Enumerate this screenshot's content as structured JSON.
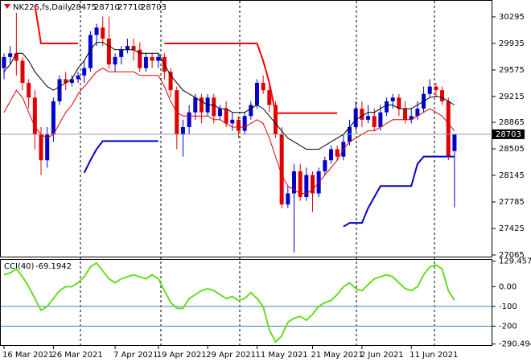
{
  "chart_data": [
    {
      "type": "candlestick",
      "title": "NK225,fs,Daily",
      "ylim": [
        27043,
        30513
      ],
      "yticks": [
        30295,
        29935,
        29575,
        29215,
        28865,
        28505,
        28145,
        27785,
        27425,
        27065
      ],
      "xticks": [
        {
          "value": 0,
          "label": "16 Mar 2021"
        },
        {
          "value": 8,
          "label": "26 Mar 2021"
        },
        {
          "value": 18,
          "label": "7 Apr 2021"
        },
        {
          "value": 25,
          "label": "19 Apr 2021"
        },
        {
          "value": 33,
          "label": "29 Apr 2021"
        },
        {
          "value": 41,
          "label": "11 May 2021"
        },
        {
          "value": 50,
          "label": "21 May 2021"
        },
        {
          "value": 58,
          "label": "2 Jun 2021"
        },
        {
          "value": 66,
          "label": "11 Jun 2021"
        }
      ],
      "up_color": "#0000cd",
      "down_color": "#e00000",
      "open": [
        29600,
        29750,
        29800,
        29700,
        29400,
        29200,
        28700,
        28350,
        28700,
        29150,
        29450,
        29400,
        29450,
        29500,
        29600,
        30050,
        30150,
        30000,
        29650,
        29750,
        29850,
        29900,
        29850,
        29600,
        29750,
        29700,
        29750,
        29550,
        29300,
        28700,
        28800,
        29000,
        29200,
        29000,
        29200,
        28950,
        29050,
        28850,
        28900,
        28750,
        28950,
        29100,
        29400,
        29300,
        29100,
        28700,
        27750,
        27900,
        28200,
        27850,
        28150,
        27900,
        28200,
        28350,
        28500,
        28400,
        28600,
        28800,
        29050,
        28900,
        28950,
        28800,
        29000,
        29150,
        29200,
        29050,
        28900,
        28950,
        29050,
        29250,
        29350,
        29300,
        29150,
        28475
      ],
      "high": [
        29800,
        29900,
        30350,
        29750,
        29450,
        29300,
        28800,
        28800,
        29200,
        29500,
        29550,
        29500,
        29550,
        29700,
        30100,
        30200,
        30300,
        30300,
        29800,
        29900,
        30000,
        30000,
        29950,
        29800,
        29800,
        29800,
        29800,
        29600,
        29350,
        28900,
        29100,
        29250,
        29250,
        29250,
        29250,
        29100,
        29150,
        29000,
        28950,
        29000,
        29150,
        29450,
        29500,
        29350,
        29150,
        28800,
        28000,
        28300,
        28300,
        28250,
        28200,
        28250,
        28400,
        28550,
        28550,
        28700,
        28900,
        29150,
        29150,
        29100,
        29050,
        29100,
        29200,
        29250,
        29250,
        29150,
        29050,
        29150,
        29350,
        29450,
        29400,
        29350,
        29200,
        28710
      ],
      "low": [
        29450,
        29650,
        29500,
        29300,
        29050,
        28500,
        28150,
        28250,
        28600,
        29100,
        29300,
        29350,
        29400,
        29400,
        29550,
        29900,
        29900,
        29600,
        29550,
        29650,
        29800,
        29700,
        29550,
        29550,
        29600,
        29600,
        29450,
        29200,
        28500,
        28400,
        28700,
        28900,
        28850,
        28950,
        28850,
        28900,
        28800,
        28750,
        28650,
        28700,
        28900,
        29050,
        29250,
        29000,
        28650,
        27700,
        27700,
        27100,
        27800,
        27800,
        27650,
        27850,
        28150,
        28300,
        28350,
        28350,
        28550,
        28750,
        28800,
        28850,
        28750,
        28750,
        28950,
        29050,
        28950,
        28850,
        28850,
        28900,
        29000,
        29200,
        29200,
        29100,
        28350,
        27710
      ],
      "close": [
        29750,
        29800,
        29700,
        29400,
        29200,
        28700,
        28350,
        28700,
        29150,
        29450,
        29400,
        29450,
        29500,
        29600,
        30050,
        30150,
        30000,
        29650,
        29750,
        29850,
        29900,
        29850,
        29600,
        29750,
        29700,
        29750,
        29550,
        29300,
        28700,
        28800,
        29000,
        29200,
        29000,
        29200,
        28950,
        29050,
        28850,
        28900,
        28750,
        28950,
        29100,
        29400,
        29300,
        29100,
        28700,
        27750,
        27900,
        28200,
        27850,
        28150,
        27900,
        28200,
        28350,
        28500,
        28400,
        28600,
        28800,
        29050,
        28900,
        28950,
        28800,
        29000,
        29150,
        29200,
        29050,
        28900,
        28950,
        29050,
        29250,
        29350,
        29300,
        29150,
        28400,
        28703
      ],
      "lines": [
        {
          "color": "#000000",
          "width": 1,
          "values": [
            29550,
            29650,
            29800,
            29800,
            29700,
            29550,
            29450,
            29350,
            29300,
            29350,
            29400,
            29450,
            29600,
            29700,
            29850,
            29950,
            29950,
            29900,
            29850,
            29850,
            29850,
            29850,
            29800,
            29800,
            29800,
            29800,
            29650,
            29500,
            29400,
            29300,
            29250,
            29200,
            29150,
            29100,
            29100,
            29050,
            29050,
            29000,
            29000,
            29000,
            29050,
            29100,
            29050,
            28950,
            28850,
            28750,
            28650,
            28600,
            28550,
            28500,
            28500,
            28500,
            28550,
            28600,
            28650,
            28700,
            28800,
            28900,
            28950,
            29000,
            29000,
            29050,
            29100,
            29100,
            29050,
            29050,
            29050,
            29100,
            29150,
            29200,
            29220,
            29200,
            29150,
            29100
          ]
        },
        {
          "color": "#e00000",
          "width": 1,
          "values": [
            29000,
            29150,
            29300,
            29200,
            29000,
            28800,
            28700,
            28650,
            28700,
            28850,
            29000,
            29100,
            29250,
            29350,
            29450,
            29550,
            29600,
            29550,
            29550,
            29550,
            29550,
            29550,
            29500,
            29500,
            29500,
            29500,
            29350,
            29150,
            29000,
            28950,
            28950,
            28950,
            28950,
            28950,
            28900,
            28900,
            28850,
            28800,
            28800,
            28800,
            28850,
            28900,
            28850,
            28650,
            28400,
            28150,
            28000,
            27950,
            27900,
            27900,
            27950,
            28050,
            28150,
            28250,
            28350,
            28500,
            28600,
            28650,
            28700,
            28750,
            28750,
            28800,
            28850,
            28900,
            28900,
            28900,
            28900,
            28950,
            29000,
            29050,
            29000,
            28950,
            28850,
            28750
          ]
        },
        {
          "color": "#ff0000",
          "width": 2,
          "values": [
            null,
            null,
            null,
            null,
            null,
            30450,
            29935,
            29935,
            29935,
            29935,
            29935,
            29935,
            29935,
            null,
            null,
            null,
            null,
            null,
            null,
            null,
            null,
            null,
            null,
            null,
            null,
            null,
            29935,
            29935,
            29935,
            29935,
            29935,
            29935,
            29935,
            29935,
            29935,
            29935,
            29935,
            29935,
            29935,
            29935,
            29935,
            29935,
            29700,
            29400,
            28990,
            28990,
            28990,
            28990,
            28990,
            28990,
            28990,
            28990,
            28990,
            28990,
            28990,
            null,
            null,
            null,
            null,
            null,
            null,
            null,
            null,
            null,
            null,
            null,
            null,
            null,
            null,
            null,
            null,
            null,
            null,
            null
          ]
        },
        {
          "color": "#0000cd",
          "width": 2,
          "values": [
            null,
            null,
            null,
            null,
            null,
            null,
            null,
            null,
            null,
            null,
            null,
            null,
            null,
            28180,
            28350,
            28500,
            28610,
            28610,
            28610,
            28610,
            28610,
            28610,
            28610,
            28610,
            28610,
            28610,
            null,
            null,
            null,
            null,
            null,
            null,
            null,
            null,
            null,
            null,
            null,
            null,
            null,
            null,
            null,
            null,
            null,
            null,
            null,
            null,
            null,
            null,
            null,
            null,
            null,
            null,
            null,
            null,
            null,
            27450,
            27500,
            27500,
            27500,
            27700,
            27850,
            28000,
            28000,
            28000,
            28000,
            28000,
            28000,
            28300,
            28400,
            28400,
            28400,
            28400,
            28400,
            28400
          ]
        }
      ]
    },
    {
      "type": "line",
      "title": "CCI(40)",
      "color": "#66dd22",
      "ylim": [
        -296,
        136
      ],
      "yticks": [
        129.4571,
        {
          "value": 0,
          "label": "0.00"
        },
        -100,
        -200,
        -290.494
      ],
      "levels": [
        -100,
        -200
      ],
      "values": [
        60,
        70,
        90,
        50,
        0,
        -60,
        -120,
        -100,
        -60,
        -20,
        0,
        0,
        20,
        50,
        100,
        120,
        80,
        40,
        20,
        40,
        50,
        60,
        50,
        40,
        60,
        40,
        -20,
        -80,
        -110,
        -110,
        -60,
        -40,
        -20,
        -10,
        -20,
        -40,
        -60,
        -50,
        -70,
        -60,
        -30,
        -60,
        -100,
        -220,
        -280,
        -250,
        -180,
        -160,
        -150,
        -170,
        -140,
        -100,
        -80,
        -70,
        -40,
        0,
        20,
        -10,
        -20,
        10,
        40,
        50,
        60,
        50,
        20,
        -10,
        -20,
        0,
        60,
        100,
        110,
        90,
        -20,
        -69.1942
      ]
    }
  ]
}
